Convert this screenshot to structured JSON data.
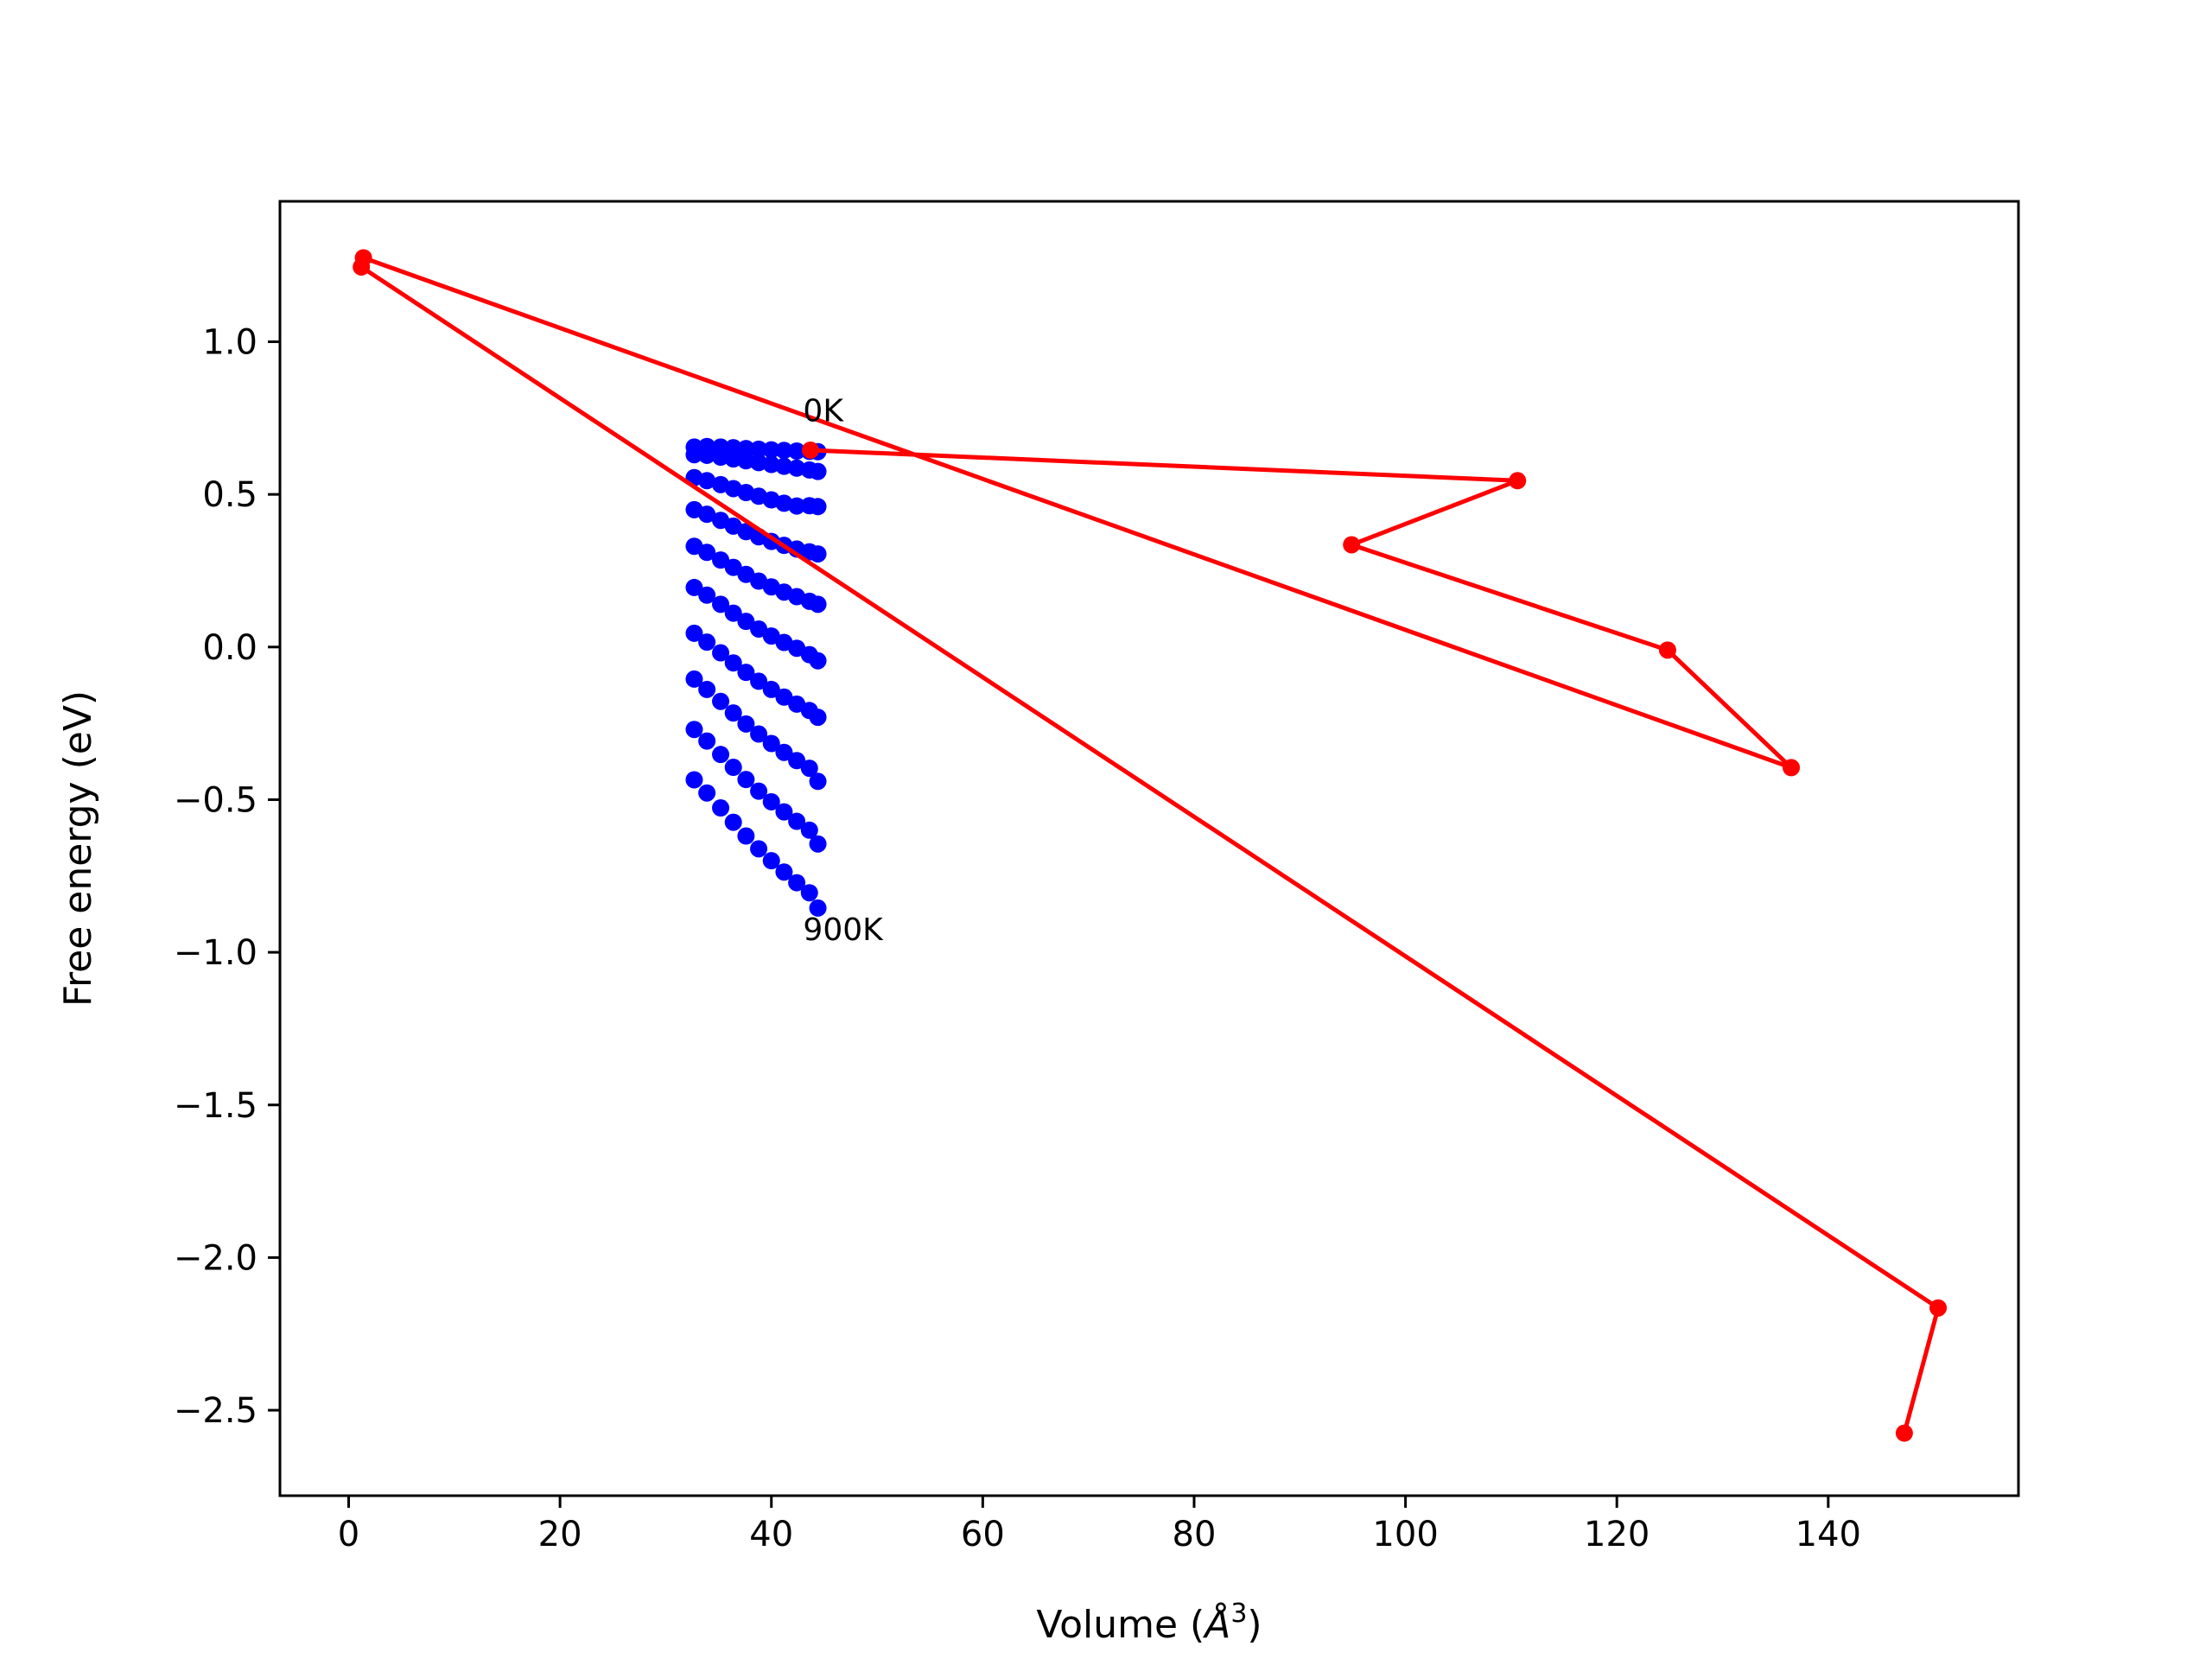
{
  "chart_data": {
    "type": "line",
    "xlabel": "Volume (Å³)",
    "xlabel_main": "Volume (",
    "xlabel_sym": "Å",
    "xlabel_sup": "3",
    "xlabel_close": ")",
    "ylabel": "Free energy (eV)",
    "xlim": [
      -6.5,
      158
    ],
    "ylim": [
      -2.78,
      1.46
    ],
    "xticks": [
      0,
      20,
      40,
      60,
      80,
      100,
      120,
      140
    ],
    "xtick_labels": [
      "0",
      "20",
      "40",
      "60",
      "80",
      "100",
      "120",
      "140"
    ],
    "yticks": [
      1.0,
      0.5,
      0.0,
      -0.5,
      -1.0,
      -1.5,
      -2.0,
      -2.5
    ],
    "ytick_labels": [
      "1.0",
      "0.5",
      "0.0",
      "−0.5",
      "−1.0",
      "−1.5",
      "−2.0",
      "−2.5"
    ],
    "grid": false,
    "series": [
      {
        "color": "#0000ff",
        "style": "markers",
        "x": [
          32.7,
          33.9,
          35.2,
          36.4,
          37.6,
          38.8,
          40.0,
          41.2,
          42.4,
          43.6,
          44.4
        ],
        "rows": [
          [
            0.655,
            0.657,
            0.655,
            0.653,
            0.65,
            0.648,
            0.646,
            0.644,
            0.642,
            0.641,
            0.64
          ],
          [
            0.63,
            0.628,
            0.622,
            0.616,
            0.61,
            0.604,
            0.598,
            0.592,
            0.586,
            0.58,
            0.575
          ],
          [
            0.555,
            0.545,
            0.532,
            0.519,
            0.506,
            0.494,
            0.482,
            0.471,
            0.462,
            0.463,
            0.46
          ],
          [
            0.45,
            0.435,
            0.415,
            0.396,
            0.378,
            0.361,
            0.346,
            0.333,
            0.321,
            0.312,
            0.305
          ],
          [
            0.33,
            0.31,
            0.285,
            0.261,
            0.238,
            0.216,
            0.197,
            0.18,
            0.165,
            0.15,
            0.14
          ],
          [
            0.195,
            0.17,
            0.14,
            0.111,
            0.084,
            0.059,
            0.036,
            0.015,
            -0.004,
            -0.025,
            -0.045
          ],
          [
            0.045,
            0.016,
            -0.019,
            -0.052,
            -0.083,
            -0.112,
            -0.139,
            -0.164,
            -0.187,
            -0.208,
            -0.23
          ],
          [
            -0.105,
            -0.139,
            -0.178,
            -0.216,
            -0.252,
            -0.285,
            -0.316,
            -0.345,
            -0.372,
            -0.397,
            -0.44
          ],
          [
            -0.27,
            -0.308,
            -0.352,
            -0.394,
            -0.434,
            -0.472,
            -0.507,
            -0.54,
            -0.571,
            -0.6,
            -0.645
          ],
          [
            -0.435,
            -0.478,
            -0.527,
            -0.574,
            -0.619,
            -0.661,
            -0.7,
            -0.737,
            -0.772,
            -0.805,
            -0.855
          ]
        ]
      },
      {
        "color": "#ff0000",
        "style": "line-markers",
        "x": [
          43.7,
          110.6,
          94.9,
          124.8,
          136.5,
          1.4,
          1.2,
          150.4,
          147.2
        ],
        "y": [
          0.645,
          0.545,
          0.335,
          -0.01,
          -0.395,
          1.275,
          1.245,
          -2.165,
          -2.575
        ]
      }
    ],
    "annotations": [
      {
        "text": "0K",
        "x": 43.0,
        "y": 0.74
      },
      {
        "text": "900K",
        "x": 43.0,
        "y": -0.96
      }
    ]
  }
}
